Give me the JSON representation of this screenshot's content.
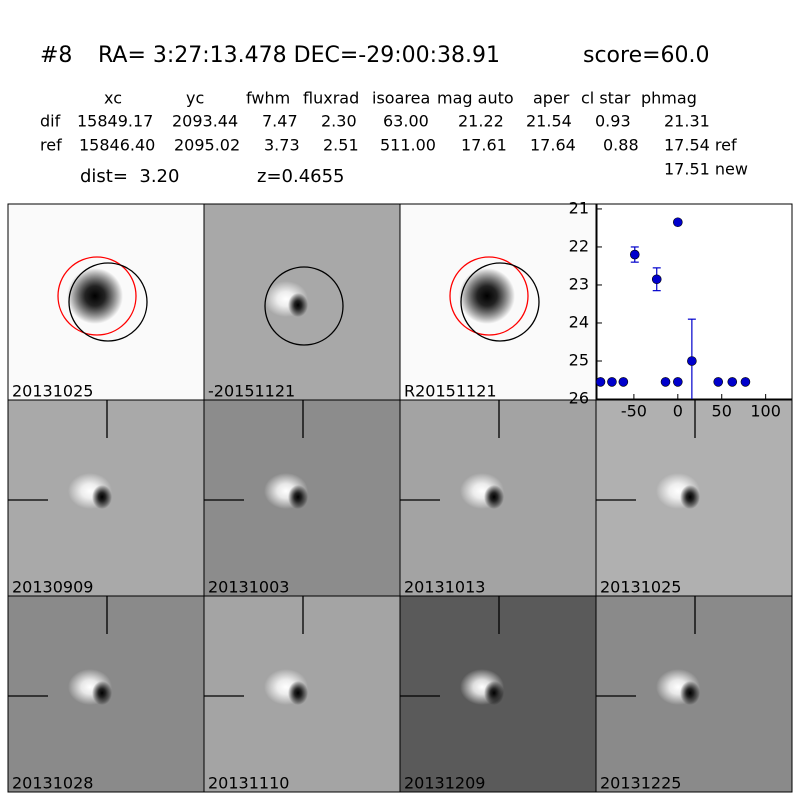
{
  "header": {
    "id": "#8",
    "coords": "RA= 3:27:13.478 DEC=-29:00:38.91",
    "score": "score=60.0"
  },
  "table": {
    "columns": [
      "xc",
      "yc",
      "fwhm",
      "fluxrad",
      "isoarea",
      "mag auto",
      "aper",
      "cl star",
      "phmag"
    ],
    "rows": [
      [
        "dif",
        "15849.17",
        "2093.44",
        "7.47",
        "2.30",
        "63.00",
        "21.22",
        "21.54",
        "0.93",
        "21.31"
      ],
      [
        "ref",
        "15846.40",
        "2095.02",
        "3.73",
        "2.51",
        "511.00",
        "17.61",
        "17.64",
        "0.88",
        "17.54 ref"
      ]
    ],
    "extra": "17.51 new"
  },
  "dist": "dist=  3.20",
  "z": "z=0.4655",
  "panels": [
    {
      "label": "20131025",
      "color": "#000000"
    },
    {
      "label": "-20151121",
      "color": "#000000"
    },
    {
      "label": "R20151121",
      "color": "#000000"
    },
    {
      "label": "20130909",
      "color": "#000000"
    },
    {
      "label": "20131003",
      "color": "#000000"
    },
    {
      "label": "20131013",
      "color": "#000000"
    },
    {
      "label": "20131025",
      "color": "#ff0000"
    },
    {
      "label": "20131028",
      "color": "#000000"
    },
    {
      "label": "20131110",
      "color": "#000000"
    },
    {
      "label": "20131209",
      "color": "#000000"
    },
    {
      "label": "20131225",
      "color": "#000000"
    }
  ],
  "chart_data": {
    "type": "scatter",
    "color": "#0000cc",
    "x": [
      -88,
      -75,
      -62,
      -49,
      -24,
      -14,
      0,
      0,
      16,
      46,
      62,
      77
    ],
    "values": [
      25.55,
      25.55,
      25.55,
      22.2,
      22.85,
      25.55,
      25.55,
      21.35,
      25.0,
      25.55,
      25.55,
      25.55
    ],
    "errors": [
      0,
      0,
      0,
      0.2,
      0.3,
      0,
      0,
      0.05,
      1.1,
      0,
      0,
      0
    ],
    "xlim": [
      -92,
      130
    ],
    "xticks": [
      -50,
      0,
      50,
      100
    ],
    "ylim": [
      20.87,
      26
    ],
    "yticks": [
      21,
      22,
      23,
      24,
      25,
      26
    ],
    "y_inverted": true
  }
}
